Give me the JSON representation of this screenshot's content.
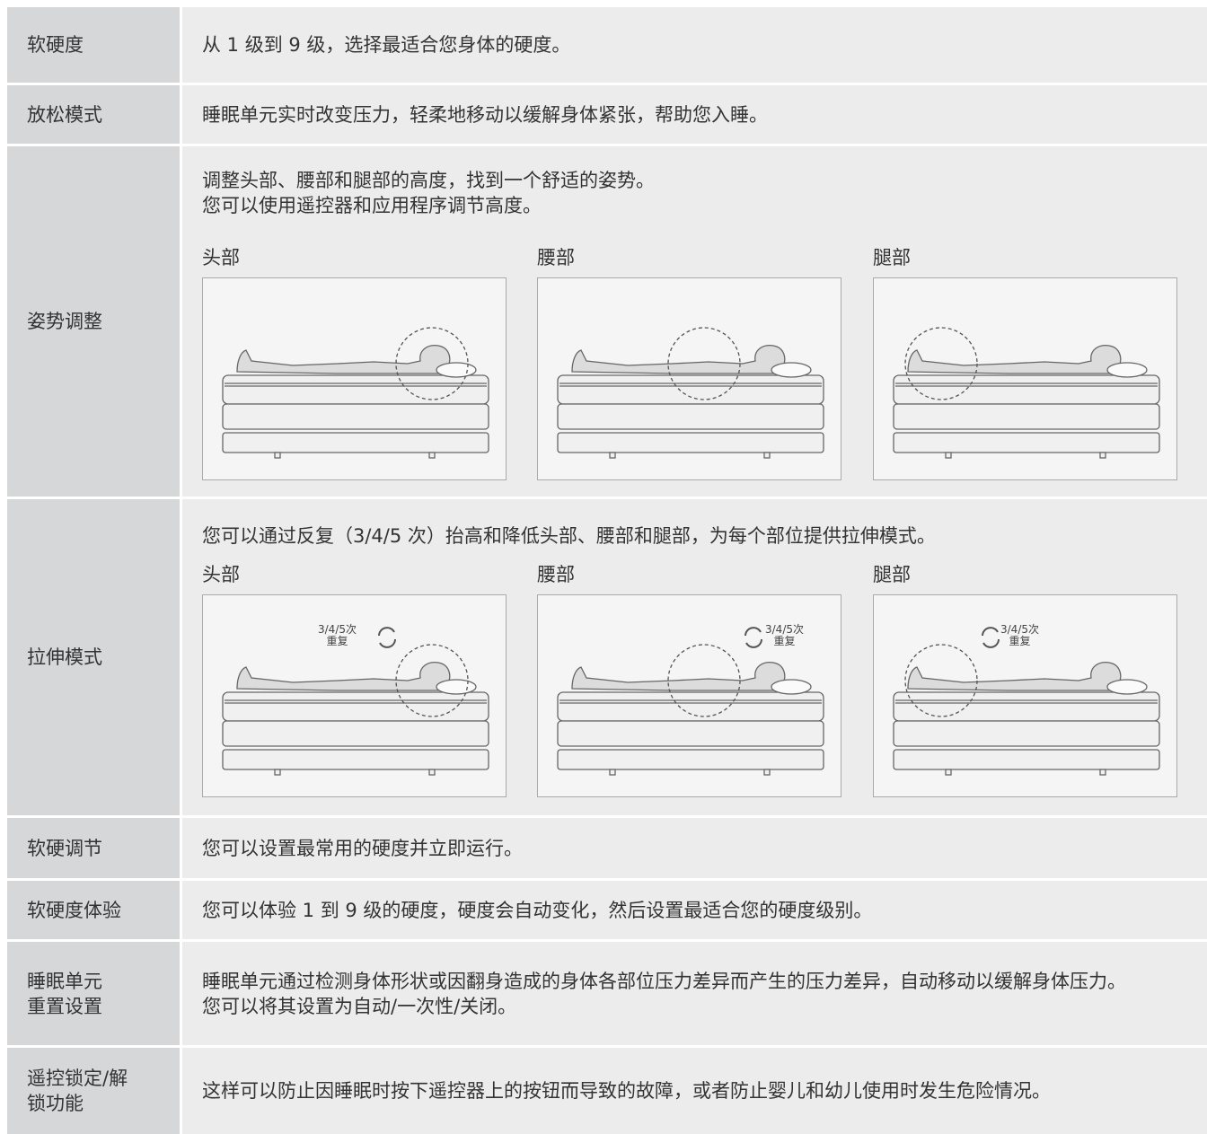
{
  "table": {
    "rows": [
      {
        "label": [
          "软硬度"
        ],
        "text": [
          "从 1 级到 9 级，选择最适合您身体的硬度。"
        ]
      },
      {
        "label": [
          "放松模式"
        ],
        "text": [
          "睡眠单元实时改变压力，轻柔地移动以缓解身体紧张，帮助您入睡。"
        ]
      },
      {
        "label": [
          "姿势调整"
        ],
        "text": [
          "调整头部、腰部和腿部的高度，找到一个舒适的姿势。",
          "您可以使用遥控器和应用程序调节高度。"
        ],
        "panels": [
          {
            "title": "头部"
          },
          {
            "title": "腰部"
          },
          {
            "title": "腿部"
          }
        ]
      },
      {
        "label": [
          "拉伸模式"
        ],
        "text": [
          "您可以通过反复（3/4/5 次）抬高和降低头部、腰部和腿部，为每个部位提供拉伸模式。"
        ],
        "panels": [
          {
            "title": "头部",
            "badge": [
              "3/4/5次",
              "重复"
            ]
          },
          {
            "title": "腰部",
            "badge": [
              "3/4/5次",
              "重复"
            ]
          },
          {
            "title": "腿部",
            "badge": [
              "3/4/5次",
              "重复"
            ]
          }
        ]
      },
      {
        "label": [
          "软硬调节"
        ],
        "text": [
          "您可以设置最常用的硬度并立即运行。"
        ]
      },
      {
        "label": [
          "软硬度体验"
        ],
        "text": [
          "您可以体验 1 到 9 级的硬度，硬度会自动变化，然后设置最适合您的硬度级别。"
        ]
      },
      {
        "label": [
          "睡眠单元",
          "重置设置"
        ],
        "text": [
          "睡眠单元通过检测身体形状或因翻身造成的身体各部位压力差异而产生的压力差异，自动移动以缓解身体压力。",
          "您可以将其设置为自动/一次性/关闭。"
        ]
      },
      {
        "label": [
          "遥控锁定/解",
          "锁功能"
        ],
        "text": [
          "这样可以防止因睡眠时按下遥控器上的按钮而导致的故障，或者防止婴儿和幼儿使用时发生危险情况。"
        ]
      }
    ]
  }
}
